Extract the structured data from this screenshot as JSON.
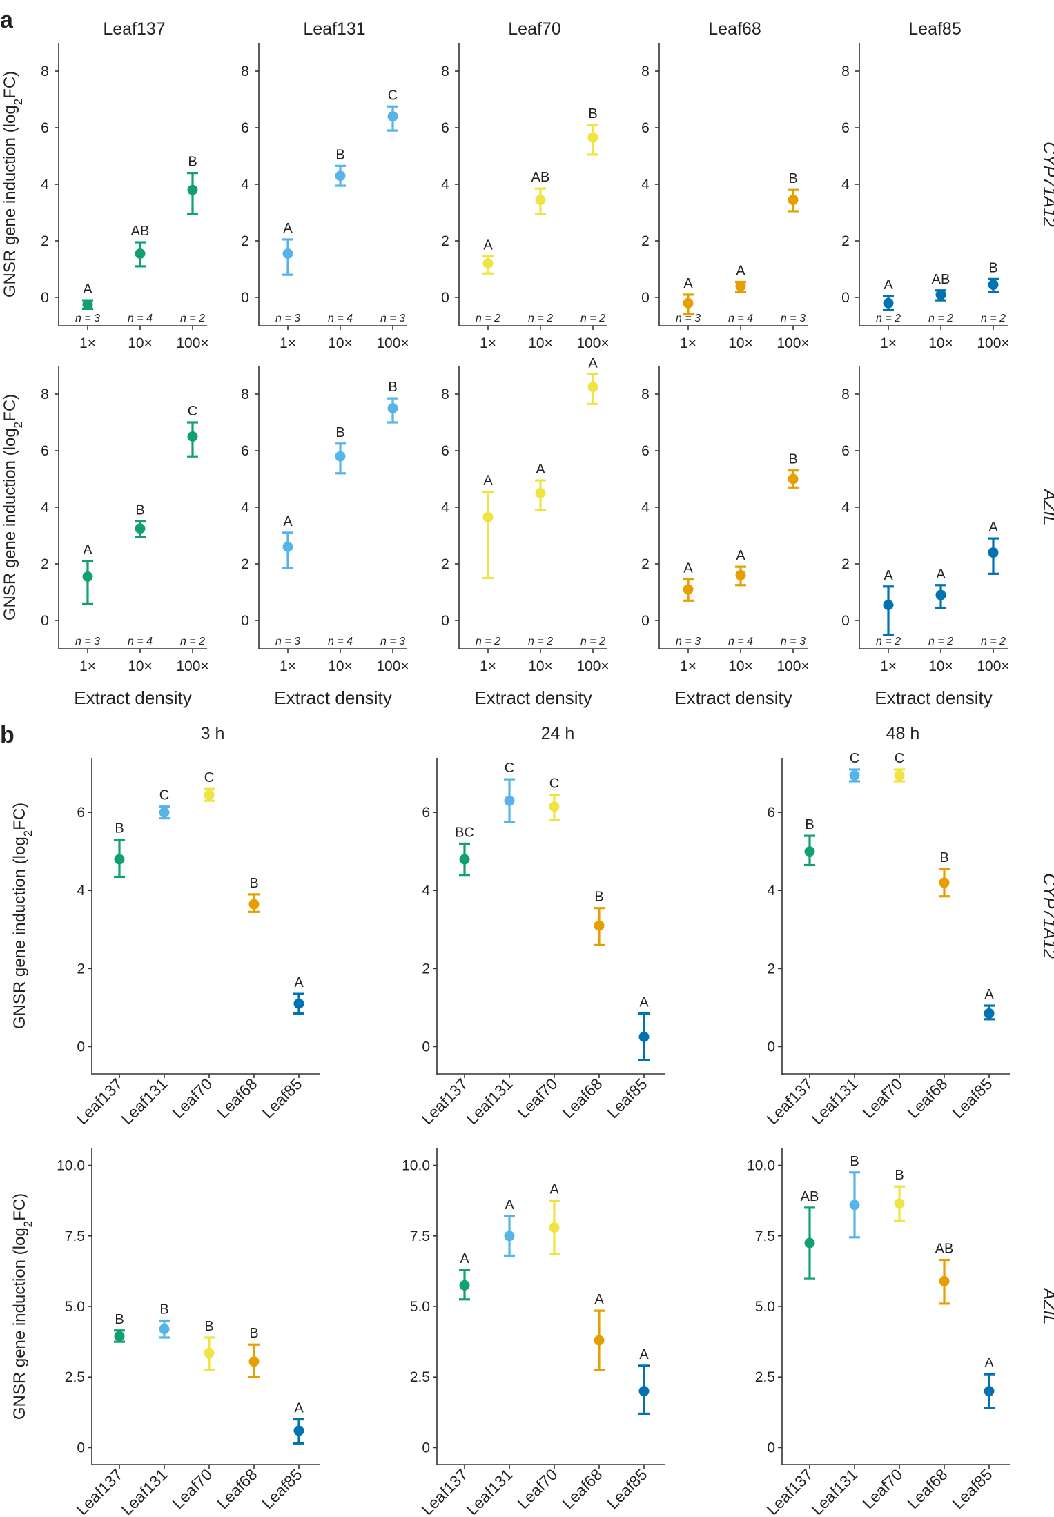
{
  "panel_a_label": "a",
  "panel_b_label": "b",
  "chart_data": [
    {
      "id": "a",
      "type": "scatter",
      "description": "Dose response: GNSR gene induction vs extract density, error bars",
      "ylabel": "GNSR gene induction (log₂FC)",
      "xlabel": "Extract density",
      "x_categories": [
        "1×",
        "10×",
        "100×"
      ],
      "columns": [
        "Leaf137",
        "Leaf131",
        "Leaf70",
        "Leaf68",
        "Leaf85"
      ],
      "rows": [
        "CYP71A12",
        "AZIL"
      ],
      "yticks": [
        "0",
        "2",
        "4",
        "6",
        "8"
      ],
      "ylim": [
        -1.0,
        9.0
      ],
      "colors": [
        "#12a072",
        "#56b4e9",
        "#f0e442",
        "#e69f00",
        "#0072b2"
      ],
      "cells": [
        [
          {
            "points": [
              {
                "y": -0.25,
                "lo": -0.4,
                "hi": -0.1,
                "l": "A",
                "n": "n = 3"
              },
              {
                "y": 1.55,
                "lo": 1.1,
                "hi": 1.95,
                "l": "AB",
                "n": "n = 4"
              },
              {
                "y": 3.8,
                "lo": 2.95,
                "hi": 4.4,
                "l": "B",
                "n": "n = 2"
              }
            ]
          },
          {
            "points": [
              {
                "y": 1.55,
                "lo": 0.8,
                "hi": 2.05,
                "l": "A",
                "n": "n = 3"
              },
              {
                "y": 4.3,
                "lo": 3.95,
                "hi": 4.65,
                "l": "B",
                "n": "n = 4"
              },
              {
                "y": 6.4,
                "lo": 5.9,
                "hi": 6.75,
                "l": "C",
                "n": "n = 3"
              }
            ]
          },
          {
            "points": [
              {
                "y": 1.2,
                "lo": 0.85,
                "hi": 1.45,
                "l": "A",
                "n": "n = 2"
              },
              {
                "y": 3.45,
                "lo": 2.95,
                "hi": 3.85,
                "l": "AB",
                "n": "n = 2"
              },
              {
                "y": 5.65,
                "lo": 5.05,
                "hi": 6.1,
                "l": "B",
                "n": "n = 2"
              }
            ]
          },
          {
            "points": [
              {
                "y": -0.2,
                "lo": -0.6,
                "hi": 0.1,
                "l": "A",
                "n": "n = 3"
              },
              {
                "y": 0.4,
                "lo": 0.2,
                "hi": 0.55,
                "l": "A",
                "n": "n = 4"
              },
              {
                "y": 3.45,
                "lo": 3.05,
                "hi": 3.8,
                "l": "B",
                "n": "n = 3"
              }
            ]
          },
          {
            "points": [
              {
                "y": -0.2,
                "lo": -0.45,
                "hi": 0.05,
                "l": "A",
                "n": "n = 2"
              },
              {
                "y": 0.1,
                "lo": -0.1,
                "hi": 0.25,
                "l": "AB",
                "n": "n = 2"
              },
              {
                "y": 0.45,
                "lo": 0.2,
                "hi": 0.65,
                "l": "B",
                "n": "n = 2"
              }
            ]
          }
        ],
        [
          {
            "points": [
              {
                "y": 1.55,
                "lo": 0.6,
                "hi": 2.1,
                "l": "A",
                "n": "n = 3"
              },
              {
                "y": 3.25,
                "lo": 2.95,
                "hi": 3.5,
                "l": "B",
                "n": "n = 4"
              },
              {
                "y": 6.5,
                "lo": 5.8,
                "hi": 7.0,
                "l": "C",
                "n": "n = 2"
              }
            ]
          },
          {
            "points": [
              {
                "y": 2.6,
                "lo": 1.85,
                "hi": 3.1,
                "l": "A",
                "n": "n = 3"
              },
              {
                "y": 5.8,
                "lo": 5.2,
                "hi": 6.25,
                "l": "B",
                "n": "n = 4"
              },
              {
                "y": 7.5,
                "lo": 7.0,
                "hi": 7.85,
                "l": "B",
                "n": "n = 3"
              }
            ]
          },
          {
            "points": [
              {
                "y": 3.65,
                "lo": 1.5,
                "hi": 4.55,
                "l": "A",
                "n": "n = 2"
              },
              {
                "y": 4.5,
                "lo": 3.9,
                "hi": 4.95,
                "l": "A",
                "n": "n = 2"
              },
              {
                "y": 8.25,
                "lo": 7.65,
                "hi": 8.7,
                "l": "A",
                "n": "n = 2"
              }
            ]
          },
          {
            "points": [
              {
                "y": 1.1,
                "lo": 0.7,
                "hi": 1.45,
                "l": "A",
                "n": "n = 3"
              },
              {
                "y": 1.6,
                "lo": 1.25,
                "hi": 1.9,
                "l": "A",
                "n": "n = 4"
              },
              {
                "y": 5.0,
                "lo": 4.7,
                "hi": 5.3,
                "l": "B",
                "n": "n = 3"
              }
            ]
          },
          {
            "points": [
              {
                "y": 0.55,
                "lo": -0.5,
                "hi": 1.2,
                "l": "A",
                "n": "n = 2"
              },
              {
                "y": 0.9,
                "lo": 0.45,
                "hi": 1.25,
                "l": "A",
                "n": "n = 2"
              },
              {
                "y": 2.4,
                "lo": 1.65,
                "hi": 2.9,
                "l": "A",
                "n": "n = 2"
              }
            ]
          }
        ]
      ]
    },
    {
      "id": "b",
      "type": "scatter",
      "description": "Time course: GNSR gene induction per strain at 3 h, 24 h, 48 h",
      "ylabel": "GNSR gene induction (log₂FC)",
      "columns": [
        "3 h",
        "24 h",
        "48 h"
      ],
      "rows": [
        "CYP71A12",
        "AZIL"
      ],
      "x_categories": [
        "Leaf137",
        "Leaf131",
        "Leaf70",
        "Leaf68",
        "Leaf85"
      ],
      "colors": [
        "#12a072",
        "#56b4e9",
        "#f0e442",
        "#e69f00",
        "#0072b2"
      ],
      "row_axes": [
        {
          "yticks": [
            "0",
            "2",
            "4",
            "6"
          ],
          "ylim": [
            -0.7,
            7.4
          ]
        },
        {
          "yticks": [
            "0",
            "2.5",
            "5.0",
            "7.5",
            "10.0"
          ],
          "ylim": [
            -0.6,
            10.6
          ]
        }
      ],
      "cells": [
        [
          {
            "points": [
              {
                "y": 4.8,
                "lo": 4.35,
                "hi": 5.3,
                "l": "B"
              },
              {
                "y": 6.0,
                "lo": 5.85,
                "hi": 6.15,
                "l": "C"
              },
              {
                "y": 6.45,
                "lo": 6.3,
                "hi": 6.6,
                "l": "C"
              },
              {
                "y": 3.65,
                "lo": 3.45,
                "hi": 3.9,
                "l": "B"
              },
              {
                "y": 1.1,
                "lo": 0.85,
                "hi": 1.35,
                "l": "A"
              }
            ]
          },
          {
            "points": [
              {
                "y": 4.8,
                "lo": 4.4,
                "hi": 5.2,
                "l": "BC"
              },
              {
                "y": 6.3,
                "lo": 5.75,
                "hi": 6.85,
                "l": "C"
              },
              {
                "y": 6.15,
                "lo": 5.8,
                "hi": 6.45,
                "l": "C"
              },
              {
                "y": 3.1,
                "lo": 2.6,
                "hi": 3.55,
                "l": "B"
              },
              {
                "y": 0.25,
                "lo": -0.35,
                "hi": 0.85,
                "l": "A"
              }
            ]
          },
          {
            "points": [
              {
                "y": 5.0,
                "lo": 4.65,
                "hi": 5.4,
                "l": "B"
              },
              {
                "y": 6.95,
                "lo": 6.8,
                "hi": 7.1,
                "l": "C"
              },
              {
                "y": 6.95,
                "lo": 6.8,
                "hi": 7.1,
                "l": "C"
              },
              {
                "y": 4.2,
                "lo": 3.85,
                "hi": 4.55,
                "l": "B"
              },
              {
                "y": 0.85,
                "lo": 0.7,
                "hi": 1.05,
                "l": "A"
              }
            ]
          }
        ],
        [
          {
            "points": [
              {
                "y": 3.95,
                "lo": 3.75,
                "hi": 4.15,
                "l": "B"
              },
              {
                "y": 4.2,
                "lo": 3.9,
                "hi": 4.5,
                "l": "B"
              },
              {
                "y": 3.35,
                "lo": 2.75,
                "hi": 3.9,
                "l": "B"
              },
              {
                "y": 3.05,
                "lo": 2.5,
                "hi": 3.65,
                "l": "B"
              },
              {
                "y": 0.6,
                "lo": 0.15,
                "hi": 1.0,
                "l": "A"
              }
            ]
          },
          {
            "points": [
              {
                "y": 5.75,
                "lo": 5.25,
                "hi": 6.3,
                "l": "A"
              },
              {
                "y": 7.5,
                "lo": 6.8,
                "hi": 8.2,
                "l": "A"
              },
              {
                "y": 7.8,
                "lo": 6.85,
                "hi": 8.75,
                "l": "A"
              },
              {
                "y": 3.8,
                "lo": 2.75,
                "hi": 4.85,
                "l": "A"
              },
              {
                "y": 2.0,
                "lo": 1.2,
                "hi": 2.9,
                "l": "A"
              }
            ]
          },
          {
            "points": [
              {
                "y": 7.25,
                "lo": 6.0,
                "hi": 8.5,
                "l": "AB"
              },
              {
                "y": 8.6,
                "lo": 7.45,
                "hi": 9.75,
                "l": "B"
              },
              {
                "y": 8.65,
                "lo": 8.05,
                "hi": 9.25,
                "l": "B"
              },
              {
                "y": 5.9,
                "lo": 5.1,
                "hi": 6.65,
                "l": "AB"
              },
              {
                "y": 2.0,
                "lo": 1.4,
                "hi": 2.6,
                "l": "A"
              }
            ]
          }
        ]
      ]
    }
  ]
}
